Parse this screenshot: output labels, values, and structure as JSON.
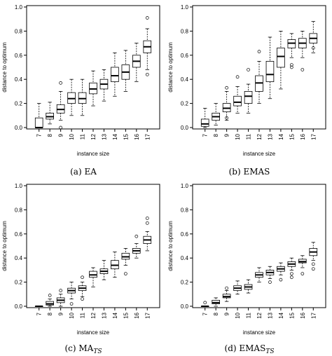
{
  "chart_data": [
    {
      "type": "box",
      "caption": "(a) EA",
      "caption_main": "(a) EA",
      "caption_sub": "",
      "xlabel": "instance size",
      "ylabel": "distance to optimum",
      "categories": [
        "7",
        "8",
        "9",
        "10",
        "11",
        "12",
        "13",
        "14",
        "15",
        "16",
        "17"
      ],
      "yticks": [
        "0.0",
        "0.2",
        "0.4",
        "0.6",
        "0.8",
        "1.0"
      ],
      "ylim": [
        0,
        1.0
      ],
      "boxes": [
        {
          "x": "7",
          "min": 0.0,
          "q1": 0.0,
          "median": 0.0,
          "q3": 0.08,
          "max": 0.2,
          "outliers": []
        },
        {
          "x": "8",
          "min": 0.03,
          "q1": 0.07,
          "median": 0.09,
          "q3": 0.12,
          "max": 0.21,
          "outliers": []
        },
        {
          "x": "9",
          "min": 0.06,
          "q1": 0.12,
          "median": 0.15,
          "q3": 0.19,
          "max": 0.3,
          "outliers": [
            0.0,
            0.37
          ]
        },
        {
          "x": "10",
          "min": 0.1,
          "q1": 0.2,
          "median": 0.24,
          "q3": 0.29,
          "max": 0.4,
          "outliers": []
        },
        {
          "x": "11",
          "min": 0.1,
          "q1": 0.2,
          "median": 0.24,
          "q3": 0.29,
          "max": 0.4,
          "outliers": []
        },
        {
          "x": "12",
          "min": 0.18,
          "q1": 0.28,
          "median": 0.32,
          "q3": 0.37,
          "max": 0.47,
          "outliers": []
        },
        {
          "x": "13",
          "min": 0.22,
          "q1": 0.32,
          "median": 0.36,
          "q3": 0.4,
          "max": 0.48,
          "outliers": []
        },
        {
          "x": "14",
          "min": 0.26,
          "q1": 0.38,
          "median": 0.43,
          "q3": 0.5,
          "max": 0.62,
          "outliers": []
        },
        {
          "x": "15",
          "min": 0.3,
          "q1": 0.4,
          "median": 0.46,
          "q3": 0.52,
          "max": 0.64,
          "outliers": []
        },
        {
          "x": "16",
          "min": 0.38,
          "q1": 0.5,
          "median": 0.55,
          "q3": 0.6,
          "max": 0.7,
          "outliers": []
        },
        {
          "x": "17",
          "min": 0.48,
          "q1": 0.62,
          "median": 0.67,
          "q3": 0.72,
          "max": 0.82,
          "outliers": [
            0.44,
            0.91
          ]
        }
      ]
    },
    {
      "type": "box",
      "caption": "(b) EMAS",
      "caption_main": "(b) EMAS",
      "caption_sub": "",
      "xlabel": "instance size",
      "ylabel": "distance to optimum",
      "categories": [
        "7",
        "8",
        "9",
        "10",
        "11",
        "12",
        "13",
        "14",
        "15",
        "16",
        "17"
      ],
      "yticks": [
        "0.0",
        "0.2",
        "0.4",
        "0.6",
        "0.8",
        "1.0"
      ],
      "ylim": [
        0,
        1.0
      ],
      "boxes": [
        {
          "x": "7",
          "min": 0.0,
          "q1": 0.01,
          "median": 0.03,
          "q3": 0.07,
          "max": 0.16,
          "outliers": []
        },
        {
          "x": "8",
          "min": 0.02,
          "q1": 0.06,
          "median": 0.09,
          "q3": 0.12,
          "max": 0.2,
          "outliers": []
        },
        {
          "x": "9",
          "min": 0.06,
          "q1": 0.13,
          "median": 0.16,
          "q3": 0.2,
          "max": 0.3,
          "outliers": [
            0.33,
            0.08
          ]
        },
        {
          "x": "10",
          "min": 0.12,
          "q1": 0.18,
          "median": 0.21,
          "q3": 0.26,
          "max": 0.34,
          "outliers": [
            0.42
          ]
        },
        {
          "x": "11",
          "min": 0.12,
          "q1": 0.2,
          "median": 0.26,
          "q3": 0.3,
          "max": 0.36,
          "outliers": [
            0.48
          ]
        },
        {
          "x": "12",
          "min": 0.2,
          "q1": 0.3,
          "median": 0.37,
          "q3": 0.43,
          "max": 0.55,
          "outliers": [
            0.63
          ]
        },
        {
          "x": "13",
          "min": 0.24,
          "q1": 0.38,
          "median": 0.44,
          "q3": 0.55,
          "max": 0.75,
          "outliers": []
        },
        {
          "x": "14",
          "min": 0.32,
          "q1": 0.5,
          "median": 0.59,
          "q3": 0.66,
          "max": 0.8,
          "outliers": []
        },
        {
          "x": "15",
          "min": 0.58,
          "q1": 0.66,
          "median": 0.7,
          "q3": 0.73,
          "max": 0.78,
          "outliers": [
            0.52,
            0.5
          ]
        },
        {
          "x": "16",
          "min": 0.58,
          "q1": 0.66,
          "median": 0.7,
          "q3": 0.74,
          "max": 0.8,
          "outliers": [
            0.48
          ]
        },
        {
          "x": "17",
          "min": 0.62,
          "q1": 0.7,
          "median": 0.74,
          "q3": 0.78,
          "max": 0.88,
          "outliers": [
            0.66
          ]
        }
      ]
    },
    {
      "type": "box",
      "caption": "(c) MA_TS",
      "caption_main": "(c) MA",
      "caption_sub": "TS",
      "xlabel": "instance size",
      "ylabel": "distance to optimum",
      "categories": [
        "7",
        "8",
        "9",
        "10",
        "11",
        "12",
        "13",
        "14",
        "15",
        "16",
        "17"
      ],
      "yticks": [
        "0.0",
        "0.2",
        "0.4",
        "0.6",
        "0.8",
        "1.0"
      ],
      "ylim": [
        0,
        1.0
      ],
      "boxes": [
        {
          "x": "7",
          "min": 0.0,
          "q1": 0.0,
          "median": 0.0,
          "q3": 0.0,
          "max": 0.0,
          "outliers": []
        },
        {
          "x": "8",
          "min": 0.0,
          "q1": 0.01,
          "median": 0.02,
          "q3": 0.04,
          "max": 0.06,
          "outliers": [
            0.09
          ]
        },
        {
          "x": "9",
          "min": 0.0,
          "q1": 0.03,
          "median": 0.05,
          "q3": 0.07,
          "max": 0.1,
          "outliers": [
            0.13
          ]
        },
        {
          "x": "10",
          "min": 0.06,
          "q1": 0.11,
          "median": 0.13,
          "q3": 0.15,
          "max": 0.2,
          "outliers": [
            0.02
          ]
        },
        {
          "x": "11",
          "min": 0.08,
          "q1": 0.13,
          "median": 0.15,
          "q3": 0.17,
          "max": 0.2,
          "outliers": [
            0.06,
            0.24
          ]
        },
        {
          "x": "12",
          "min": 0.16,
          "q1": 0.24,
          "median": 0.26,
          "q3": 0.29,
          "max": 0.32,
          "outliers": []
        },
        {
          "x": "13",
          "min": 0.22,
          "q1": 0.27,
          "median": 0.29,
          "q3": 0.31,
          "max": 0.38,
          "outliers": []
        },
        {
          "x": "14",
          "min": 0.24,
          "q1": 0.31,
          "median": 0.34,
          "q3": 0.38,
          "max": 0.45,
          "outliers": []
        },
        {
          "x": "15",
          "min": 0.34,
          "q1": 0.39,
          "median": 0.41,
          "q3": 0.44,
          "max": 0.48,
          "outliers": [
            0.27
          ]
        },
        {
          "x": "16",
          "min": 0.4,
          "q1": 0.44,
          "median": 0.46,
          "q3": 0.48,
          "max": 0.52,
          "outliers": [
            0.58
          ]
        },
        {
          "x": "17",
          "min": 0.46,
          "q1": 0.52,
          "median": 0.55,
          "q3": 0.58,
          "max": 0.62,
          "outliers": [
            0.69,
            0.73
          ]
        }
      ]
    },
    {
      "type": "box",
      "caption": "(d) EMAS_TS",
      "caption_main": "(d) EMAS",
      "caption_sub": "TS",
      "xlabel": "instance size",
      "ylabel": "distance to optimum",
      "categories": [
        "7",
        "8",
        "9",
        "10",
        "11",
        "12",
        "13",
        "14",
        "15",
        "16",
        "17"
      ],
      "yticks": [
        "0.0",
        "0.2",
        "0.4",
        "0.6",
        "0.8",
        "1.0"
      ],
      "ylim": [
        0,
        1.0
      ],
      "boxes": [
        {
          "x": "7",
          "min": 0.0,
          "q1": 0.0,
          "median": 0.0,
          "q3": 0.0,
          "max": 0.0,
          "outliers": [
            0.03
          ]
        },
        {
          "x": "8",
          "min": 0.0,
          "q1": 0.02,
          "median": 0.03,
          "q3": 0.05,
          "max": 0.07,
          "outliers": []
        },
        {
          "x": "9",
          "min": 0.04,
          "q1": 0.07,
          "median": 0.08,
          "q3": 0.1,
          "max": 0.13,
          "outliers": [
            0.15
          ]
        },
        {
          "x": "10",
          "min": 0.1,
          "q1": 0.13,
          "median": 0.15,
          "q3": 0.17,
          "max": 0.21,
          "outliers": []
        },
        {
          "x": "11",
          "min": 0.11,
          "q1": 0.14,
          "median": 0.16,
          "q3": 0.18,
          "max": 0.22,
          "outliers": []
        },
        {
          "x": "12",
          "min": 0.2,
          "q1": 0.24,
          "median": 0.26,
          "q3": 0.28,
          "max": 0.32,
          "outliers": []
        },
        {
          "x": "13",
          "min": 0.23,
          "q1": 0.26,
          "median": 0.28,
          "q3": 0.3,
          "max": 0.33,
          "outliers": [
            0.2
          ]
        },
        {
          "x": "14",
          "min": 0.26,
          "q1": 0.29,
          "median": 0.31,
          "q3": 0.33,
          "max": 0.36,
          "outliers": [
            0.22
          ]
        },
        {
          "x": "15",
          "min": 0.3,
          "q1": 0.33,
          "median": 0.35,
          "q3": 0.37,
          "max": 0.4,
          "outliers": [
            0.27,
            0.24
          ]
        },
        {
          "x": "16",
          "min": 0.32,
          "q1": 0.36,
          "median": 0.37,
          "q3": 0.39,
          "max": 0.42,
          "outliers": [
            0.27
          ]
        },
        {
          "x": "17",
          "min": 0.38,
          "q1": 0.42,
          "median": 0.45,
          "q3": 0.48,
          "max": 0.53,
          "outliers": [
            0.31,
            0.35
          ]
        }
      ]
    }
  ]
}
